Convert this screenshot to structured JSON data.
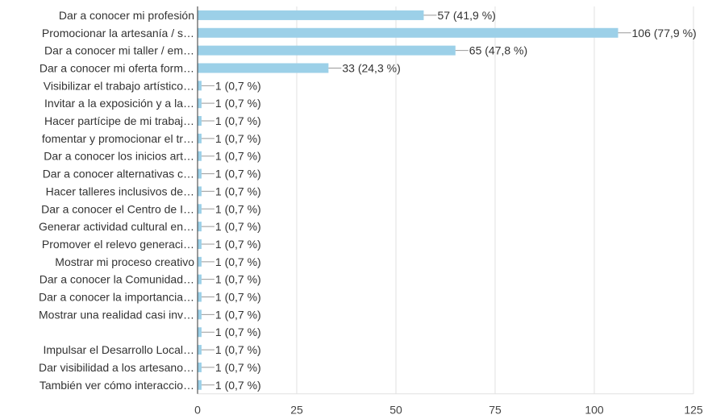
{
  "chart_data": {
    "type": "bar",
    "orientation": "horizontal",
    "bar_color": "#9cd0e8",
    "grid": true,
    "xlim": [
      0,
      125
    ],
    "xticks": [
      0,
      25,
      50,
      75,
      100,
      125
    ],
    "categories": [
      "Dar a conocer mi profesión",
      "Promocionar la artesanía / s…",
      "Dar a conocer mi taller / em…",
      "Dar a conocer mi oferta form…",
      "Visibilizar el trabajo artístico…",
      "Invitar a la exposición y a la…",
      "Hacer partícipe de mi trabaj…",
      "fomentar y promocionar el tr…",
      "Dar a conocer los inicios art…",
      "Dar a conocer alternativas c…",
      "Hacer talleres inclusivos de…",
      "Dar a conocer el Centro de I…",
      "Generar actividad cultural en…",
      "Promover el relevo generaci…",
      "Mostrar mi proceso creativo",
      "Dar a conocer la Comunidad…",
      "Dar a conocer la importancia…",
      "Mostrar una realidad casi inv…",
      "",
      "Impulsar el Desarrollo Local…",
      "Dar visibilidad a los artesano…",
      "También ver cómo interaccio…"
    ],
    "values": [
      57,
      106,
      65,
      33,
      1,
      1,
      1,
      1,
      1,
      1,
      1,
      1,
      1,
      1,
      1,
      1,
      1,
      1,
      1,
      1,
      1,
      1
    ],
    "value_labels": [
      "57 (41,9 %)",
      "106 (77,9 %)",
      "65 (47,8 %)",
      "33 (24,3 %)",
      "1 (0,7 %)",
      "1 (0,7 %)",
      "1 (0,7 %)",
      "1 (0,7 %)",
      "1 (0,7 %)",
      "1 (0,7 %)",
      "1 (0,7 %)",
      "1 (0,7 %)",
      "1 (0,7 %)",
      "1 (0,7 %)",
      "1 (0,7 %)",
      "1 (0,7 %)",
      "1 (0,7 %)",
      "1 (0,7 %)",
      "1 (0,7 %)",
      "1 (0,7 %)",
      "1 (0,7 %)",
      "1 (0,7 %)"
    ]
  }
}
